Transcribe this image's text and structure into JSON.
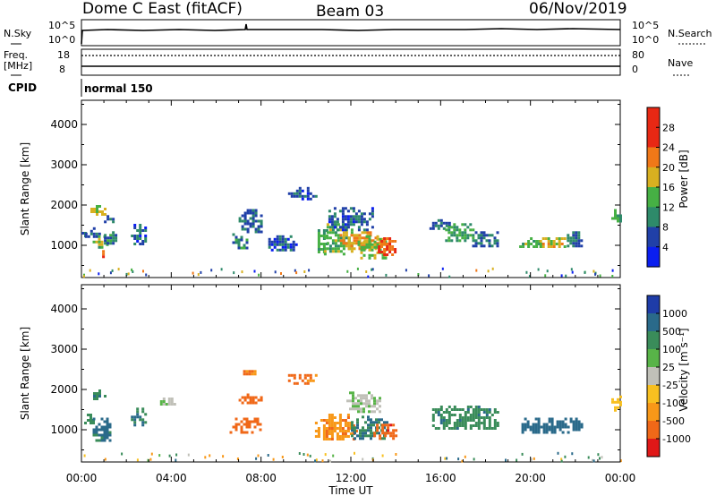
{
  "header": {
    "station": "Dome C East (fitACF)",
    "beam": "Beam 03",
    "date": "06/Nov/2019"
  },
  "strip_nsky": {
    "left_label": "N.Sky",
    "right_label": "N.Search",
    "left_top_tick": "10^5",
    "left_bottom_tick": "10^0",
    "right_top_tick": "10^5",
    "right_bottom_tick": "10^0"
  },
  "strip_freq": {
    "left_label": "Freq.",
    "left_unit": "[MHz]",
    "right_label": "Nave",
    "left_top_tick": "18",
    "left_bottom_tick": "8",
    "right_top_tick": "80",
    "right_bottom_tick": "0"
  },
  "cpid": {
    "label": "CPID",
    "value": "normal 150"
  },
  "time_axis": {
    "label": "Time UT",
    "ticks": [
      "00:00",
      "04:00",
      "08:00",
      "12:00",
      "16:00",
      "20:00",
      "00:00"
    ]
  },
  "range_axis": {
    "label": "Slant Range [km]",
    "ticks": [
      "1000",
      "2000",
      "3000",
      "4000"
    ]
  },
  "power_scale": {
    "label": "Power [dB]",
    "ticks": [
      "4",
      "8",
      "12",
      "16",
      "20",
      "24",
      "28"
    ],
    "colors": [
      "#0a1ef0",
      "#2040a8",
      "#2e8a6a",
      "#46b044",
      "#d8b020",
      "#f07818",
      "#e82814"
    ]
  },
  "velocity_scale": {
    "label": "Velocity [m s⁻¹]",
    "ticks": [
      "1000",
      "500",
      "100",
      "25",
      "-25",
      "-100",
      "-500",
      "-1000"
    ],
    "colors": [
      "#1e3ca8",
      "#2a6a8a",
      "#3a8c5a",
      "#58b448",
      "#c0c0b8",
      "#f8c020",
      "#f89818",
      "#f06818",
      "#e01818"
    ]
  },
  "chart_data": [
    {
      "type": "heatmap",
      "ylabel": "Slant Range [km]",
      "xlabel": "Time UT",
      "xlim_hours": [
        0,
        24
      ],
      "ylim": [
        200,
        4600
      ],
      "colorbar_label": "Power [dB]",
      "clim": [
        0,
        32
      ],
      "patches": [
        {
          "t": [
            0.0,
            0.2
          ],
          "r": [
            1150,
            1400
          ],
          "v": 6
        },
        {
          "t": [
            0.15,
            0.85
          ],
          "r": [
            1200,
            1450
          ],
          "v": 7
        },
        {
          "t": [
            0.4,
            1.0
          ],
          "r": [
            1750,
            2000
          ],
          "v": 18
        },
        {
          "t": [
            0.5,
            1.1
          ],
          "r": [
            950,
            1250
          ],
          "v": 14
        },
        {
          "t": [
            0.8,
            1.0
          ],
          "r": [
            700,
            950
          ],
          "v": 26
        },
        {
          "t": [
            1.0,
            1.4
          ],
          "r": [
            1550,
            1750
          ],
          "v": 7
        },
        {
          "t": [
            1.0,
            1.5
          ],
          "r": [
            1050,
            1350
          ],
          "v": 9
        },
        {
          "t": [
            2.2,
            2.9
          ],
          "r": [
            1000,
            1600
          ],
          "v": 7
        },
        {
          "t": [
            6.6,
            7.4
          ],
          "r": [
            900,
            1300
          ],
          "v": 10
        },
        {
          "t": [
            7.0,
            8.0
          ],
          "r": [
            1300,
            1900
          ],
          "v": 8
        },
        {
          "t": [
            8.2,
            9.6
          ],
          "r": [
            850,
            1250
          ],
          "v": 6
        },
        {
          "t": [
            9.2,
            10.4
          ],
          "r": [
            2150,
            2450
          ],
          "v": 6
        },
        {
          "t": [
            10.4,
            10.9
          ],
          "r": [
            800,
            1400
          ],
          "v": 12
        },
        {
          "t": [
            10.8,
            12.1
          ],
          "r": [
            750,
            1550
          ],
          "v": 14
        },
        {
          "t": [
            11.5,
            13.2
          ],
          "r": [
            900,
            1350
          ],
          "v": 20
        },
        {
          "t": [
            12.3,
            13.6
          ],
          "r": [
            700,
            1250
          ],
          "v": 16
        },
        {
          "t": [
            11.0,
            13.0
          ],
          "r": [
            1400,
            1950
          ],
          "v": 7
        },
        {
          "t": [
            13.2,
            14.0
          ],
          "r": [
            750,
            1200
          ],
          "v": 24
        },
        {
          "t": [
            15.5,
            16.4
          ],
          "r": [
            1350,
            1650
          ],
          "v": 8
        },
        {
          "t": [
            16.2,
            17.4
          ],
          "r": [
            1100,
            1550
          ],
          "v": 12
        },
        {
          "t": [
            17.4,
            18.7
          ],
          "r": [
            950,
            1350
          ],
          "v": 8
        },
        {
          "t": [
            19.5,
            20.5
          ],
          "r": [
            950,
            1200
          ],
          "v": 13
        },
        {
          "t": [
            20.4,
            21.6
          ],
          "r": [
            950,
            1200
          ],
          "v": 17
        },
        {
          "t": [
            21.5,
            22.3
          ],
          "r": [
            950,
            1350
          ],
          "v": 8
        },
        {
          "t": [
            23.6,
            24.0
          ],
          "r": [
            1600,
            1900
          ],
          "v": 10
        }
      ]
    },
    {
      "type": "heatmap",
      "ylabel": "Slant Range [km]",
      "xlabel": "Time UT",
      "xlim_hours": [
        0,
        24
      ],
      "ylim": [
        200,
        4600
      ],
      "colorbar_label": "Velocity [m s⁻¹]",
      "clim": [
        -1000,
        1000
      ],
      "patches": [
        {
          "t": [
            0.0,
            0.5
          ],
          "r": [
            1150,
            1400
          ],
          "v": 60
        },
        {
          "t": [
            0.4,
            1.0
          ],
          "r": [
            1750,
            2000
          ],
          "v": 80
        },
        {
          "t": [
            0.5,
            1.3
          ],
          "r": [
            700,
            1300
          ],
          "v": 120
        },
        {
          "t": [
            2.2,
            2.9
          ],
          "r": [
            1100,
            1550
          ],
          "v": 90
        },
        {
          "t": [
            3.5,
            4.2
          ],
          "r": [
            1600,
            1800
          ],
          "v": 0
        },
        {
          "t": [
            6.6,
            8.0
          ],
          "r": [
            950,
            1300
          ],
          "v": -300
        },
        {
          "t": [
            7.0,
            8.0
          ],
          "r": [
            1650,
            1900
          ],
          "v": -300
        },
        {
          "t": [
            7.2,
            7.7
          ],
          "r": [
            2350,
            2550
          ],
          "v": -200
        },
        {
          "t": [
            9.2,
            10.4
          ],
          "r": [
            2150,
            2450
          ],
          "v": -250
        },
        {
          "t": [
            10.4,
            12.2
          ],
          "r": [
            750,
            1400
          ],
          "v": -180
        },
        {
          "t": [
            11.8,
            13.3
          ],
          "r": [
            1450,
            1950
          ],
          "v": 0
        },
        {
          "t": [
            12.0,
            13.6
          ],
          "r": [
            800,
            1350
          ],
          "v": 100
        },
        {
          "t": [
            13.0,
            14.0
          ],
          "r": [
            800,
            1150
          ],
          "v": -400
        },
        {
          "t": [
            15.5,
            18.6
          ],
          "r": [
            1000,
            1600
          ],
          "v": 80
        },
        {
          "t": [
            19.6,
            22.3
          ],
          "r": [
            950,
            1300
          ],
          "v": 150
        },
        {
          "t": [
            23.6,
            24.0
          ],
          "r": [
            1500,
            1850
          ],
          "v": -60
        }
      ]
    }
  ]
}
